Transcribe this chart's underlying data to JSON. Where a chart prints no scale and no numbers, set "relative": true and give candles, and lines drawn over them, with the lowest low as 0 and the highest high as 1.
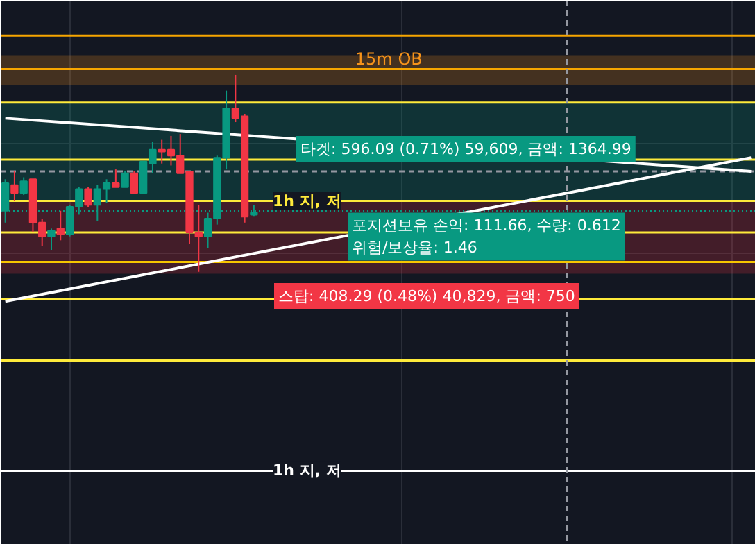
{
  "chart_data": {
    "type": "candlestick",
    "relative": true,
    "grid": true,
    "categories": [
      null,
      null,
      null,
      null,
      null,
      null,
      null,
      null,
      null,
      null,
      null,
      null,
      null,
      null,
      null,
      null,
      null,
      null,
      null,
      null,
      null,
      null,
      null,
      null,
      null,
      null,
      null,
      null,
      null,
      null,
      null,
      null,
      null,
      null,
      null,
      null,
      null,
      null,
      null,
      null,
      null,
      null,
      null,
      null,
      null,
      null,
      null,
      null,
      null,
      null,
      null,
      null,
      null,
      null,
      null,
      null,
      null,
      null,
      null,
      null,
      null,
      null,
      null,
      null,
      null,
      null,
      null,
      null,
      null,
      null,
      null,
      null,
      null,
      null,
      null,
      null,
      null,
      null,
      null,
      null,
      null,
      null
    ],
    "ohlc": [
      [
        0.31,
        0.47,
        0.25,
        0.45
      ],
      [
        0.44,
        0.51,
        0.36,
        0.4
      ],
      [
        0.4,
        0.48,
        0.39,
        0.46
      ],
      [
        0.47,
        0.47,
        0.2,
        0.25
      ],
      [
        0.25,
        0.27,
        0.13,
        0.18
      ],
      [
        0.18,
        0.22,
        0.11,
        0.21
      ],
      [
        0.22,
        0.31,
        0.16,
        0.19
      ],
      [
        0.19,
        0.34,
        0.18,
        0.33
      ],
      [
        0.33,
        0.43,
        0.29,
        0.42
      ],
      [
        0.42,
        0.43,
        0.33,
        0.34
      ],
      [
        0.34,
        0.44,
        0.26,
        0.42
      ],
      [
        0.42,
        0.47,
        0.35,
        0.45
      ],
      [
        0.45,
        0.52,
        0.43,
        0.43
      ],
      [
        0.43,
        0.51,
        0.43,
        0.5
      ],
      [
        0.5,
        0.51,
        0.4,
        0.4
      ],
      [
        0.4,
        0.56,
        0.4,
        0.56
      ],
      [
        0.55,
        0.66,
        0.5,
        0.62
      ],
      [
        0.62,
        0.67,
        0.55,
        0.61
      ],
      [
        0.62,
        0.69,
        0.54,
        0.59
      ],
      [
        0.59,
        0.7,
        0.5,
        0.5
      ],
      [
        0.51,
        0.51,
        0.14,
        0.2
      ],
      [
        0.2,
        0.34,
        0.0,
        0.18
      ],
      [
        0.18,
        0.3,
        0.12,
        0.27
      ],
      [
        0.27,
        0.59,
        0.24,
        0.58
      ],
      [
        0.58,
        0.92,
        0.52,
        0.83
      ],
      [
        0.83,
        1.0,
        0.76,
        0.78
      ],
      [
        0.79,
        0.8,
        0.25,
        0.28
      ],
      [
        0.29,
        0.34,
        0.28,
        0.3
      ],
      null,
      null,
      null,
      null,
      null,
      null,
      null,
      null,
      null,
      null,
      null,
      null,
      null,
      null,
      null,
      null,
      null,
      null,
      null,
      null,
      null,
      null,
      null,
      null,
      null,
      null,
      null,
      null,
      null,
      null,
      null,
      null,
      null,
      null,
      null,
      null,
      null,
      null,
      null,
      null,
      null,
      null,
      null,
      null,
      null,
      null,
      null,
      null,
      null,
      null,
      null,
      null,
      null,
      null
    ],
    "series": [
      {
        "type": "line",
        "color": "#ffffff",
        "values": [
          0.78,
          null,
          null,
          null,
          null,
          null,
          null,
          null,
          null,
          null,
          null,
          null,
          null,
          null,
          null,
          null,
          null,
          null,
          null,
          null,
          null,
          null,
          null,
          null,
          null,
          null,
          null,
          null,
          null,
          null,
          null,
          null,
          null,
          null,
          null,
          null,
          null,
          null,
          null,
          null,
          null,
          null,
          null,
          null,
          null,
          null,
          null,
          null,
          null,
          null,
          null,
          null,
          null,
          null,
          null,
          null,
          null,
          null,
          null,
          null,
          null,
          null,
          null,
          null,
          null,
          null,
          null,
          null,
          null,
          null,
          null,
          null,
          null,
          null,
          null,
          null,
          null,
          null,
          null,
          null,
          null,
          0.51
        ]
      },
      {
        "type": "line",
        "color": "#ffffff",
        "values": [
          -0.15,
          null,
          null,
          null,
          null,
          null,
          null,
          null,
          null,
          null,
          null,
          null,
          null,
          null,
          null,
          null,
          null,
          null,
          null,
          null,
          null,
          null,
          null,
          null,
          null,
          null,
          null,
          null,
          null,
          null,
          null,
          null,
          null,
          null,
          null,
          null,
          null,
          null,
          null,
          null,
          null,
          null,
          null,
          null,
          null,
          null,
          null,
          null,
          null,
          null,
          null,
          null,
          null,
          null,
          null,
          null,
          null,
          null,
          null,
          null,
          null,
          null,
          null,
          null,
          null,
          null,
          null,
          null,
          null,
          null,
          null,
          null,
          null,
          null,
          null,
          null,
          null,
          null,
          null,
          null,
          null,
          0.58
        ]
      }
    ],
    "bands": [
      {
        "axis": "y",
        "from": 0.95,
        "to": 1.1,
        "label": "15m OB",
        "color": "#f7931a"
      },
      {
        "axis": "y",
        "from": 0.36,
        "to": 0.86,
        "color": "#089981"
      },
      {
        "axis": "y",
        "from": -0.01,
        "to": 0.36,
        "color": "#f23645"
      }
    ],
    "ref_lines": [
      {
        "axis": "y",
        "value": 1.2,
        "color": "#f7a600"
      },
      {
        "axis": "y",
        "value": 1.03,
        "color": "#f7a600"
      },
      {
        "axis": "y",
        "value": 0.86,
        "color": "#ffeb3b"
      },
      {
        "axis": "y",
        "value": 0.57,
        "color": "#ffeb3b"
      },
      {
        "axis": "y",
        "value": 0.51,
        "color": "#9598a1",
        "line_style": "dashed"
      },
      {
        "axis": "y",
        "value": 0.36,
        "color": "#ffeb3b",
        "label": "1h 지, 저"
      },
      {
        "axis": "y",
        "value": 0.31,
        "color": "#089981",
        "line_style": "dotted"
      },
      {
        "axis": "y",
        "value": 0.2,
        "color": "#ffeb3b"
      },
      {
        "axis": "y",
        "value": 0.05,
        "color": "#f7c600"
      },
      {
        "axis": "y",
        "value": -0.14,
        "color": "#ffeb3b"
      },
      {
        "axis": "y",
        "value": -0.45,
        "color": "#ffeb3b"
      },
      {
        "axis": "y",
        "value": -1.01,
        "color": "#ffffff",
        "label": "1h 지, 저"
      }
    ],
    "annotations": [
      "타겟: 596.09 (0.71%) 59,609, 금액: 1364.99",
      "포지션보유 손익: 111.66, 수량: 0.612\n위험/보상율: 1.46",
      "스탑: 408.29 (0.48%) 40,829, 금액: 750"
    ]
  }
}
